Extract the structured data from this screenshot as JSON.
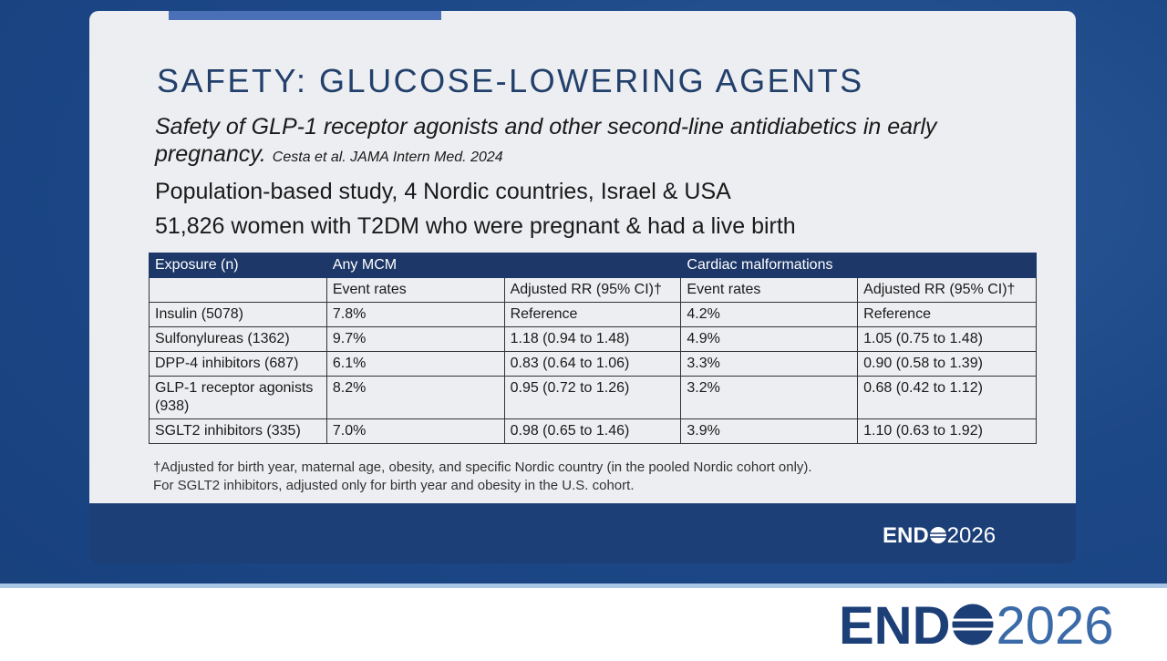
{
  "slide": {
    "title": "SAFETY: GLUCOSE-LOWERING AGENTS",
    "subtitle": "Safety of GLP-1 receptor agonists and other second-line antidiabetics in early pregnancy.",
    "citation": "Cesta et al. JAMA Intern Med. 2024",
    "lines": [
      "Population-based study, 4 Nordic countries, Israel & USA",
      "51,826 women with T2DM who were pregnant & had a live birth"
    ],
    "table": {
      "header": [
        "Exposure (n)",
        "Any MCM",
        "Cardiac malformations"
      ],
      "subheader": [
        "Event rates",
        "Adjusted RR (95% CI)†",
        "Event rates",
        "Adjusted RR (95% CI)†"
      ],
      "rows": [
        [
          "Insulin (5078)",
          "7.8%",
          "Reference",
          "4.2%",
          "Reference"
        ],
        [
          "Sulfonylureas (1362)",
          "9.7%",
          "1.18 (0.94 to 1.48)",
          "4.9%",
          "1.05 (0.75 to 1.48)"
        ],
        [
          "DPP-4 inhibitors (687)",
          "6.1%",
          "0.83 (0.64 to 1.06)",
          "3.3%",
          "0.90 (0.58 to 1.39)"
        ],
        [
          "GLP-1 receptor agonists (938)",
          "8.2%",
          "0.95 (0.72 to 1.26)",
          "3.2%",
          "0.68 (0.42 to 1.12)"
        ],
        [
          "SGLT2 inhibitors (335)",
          "7.0%",
          "0.98 (0.65 to 1.46)",
          "3.9%",
          "1.10 (0.63 to 1.92)"
        ]
      ]
    },
    "footnotes": [
      "†Adjusted for birth year, maternal age, obesity, and specific Nordic country (in the pooled Nordic cohort only).",
      "For SGLT2 inhibitors, adjusted only for birth year and obesity in the U.S. cohort."
    ]
  },
  "logo": {
    "left": "END",
    "right": "2026"
  }
}
